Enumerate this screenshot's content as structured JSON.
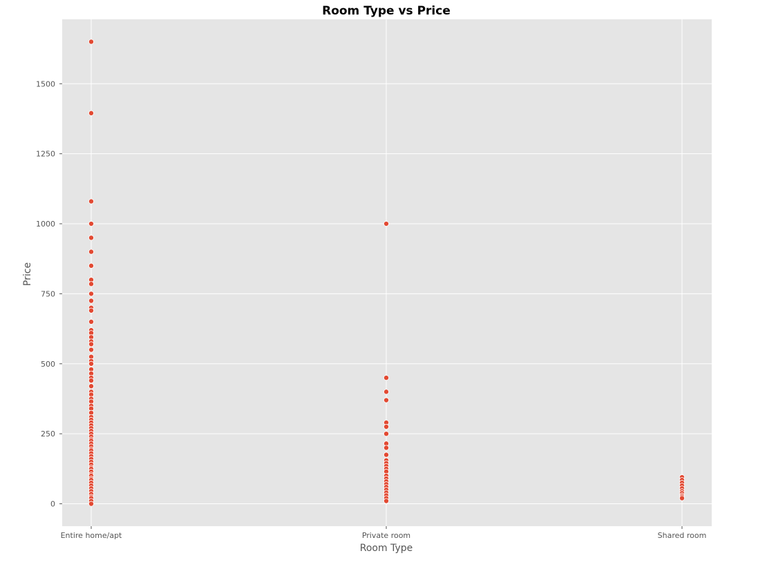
{
  "chart_data": {
    "type": "scatter",
    "title": "Room Type vs Price",
    "xlabel": "Room Type",
    "ylabel": "Price",
    "categories": [
      "Entire home/apt",
      "Private room",
      "Shared room"
    ],
    "ylim": [
      -80,
      1730
    ],
    "yticks": [
      0,
      250,
      500,
      750,
      1000,
      1250,
      1500
    ],
    "grid": true,
    "colors": {
      "background": "#e5e5e5",
      "grid": "#ffffff",
      "point": "#e24a33",
      "point_edge": "#ffffff"
    },
    "series": [
      {
        "category": "Entire home/apt",
        "y": [
          1650,
          1395,
          1080,
          1000,
          950,
          900,
          850,
          800,
          785,
          750,
          725,
          700,
          690,
          650,
          620,
          610,
          595,
          580,
          570,
          550,
          525,
          510,
          500,
          480,
          465,
          450,
          440,
          420,
          400,
          390,
          375,
          365,
          350,
          340,
          325,
          310,
          300,
          290,
          280,
          270,
          260,
          250,
          240,
          230,
          225,
          215,
          205,
          195,
          190,
          180,
          170,
          160,
          150,
          140,
          130,
          125,
          115,
          105,
          100,
          90,
          85,
          75,
          65,
          55,
          45,
          35,
          25,
          20,
          10,
          0
        ]
      },
      {
        "category": "Private room",
        "y": [
          1000,
          450,
          400,
          370,
          290,
          275,
          250,
          215,
          200,
          175,
          155,
          145,
          135,
          125,
          115,
          100,
          90,
          80,
          70,
          60,
          50,
          40,
          30,
          20,
          10
        ]
      },
      {
        "category": "Shared room",
        "y": [
          95,
          85,
          75,
          65,
          55,
          45,
          38,
          30,
          25,
          20
        ]
      }
    ]
  }
}
